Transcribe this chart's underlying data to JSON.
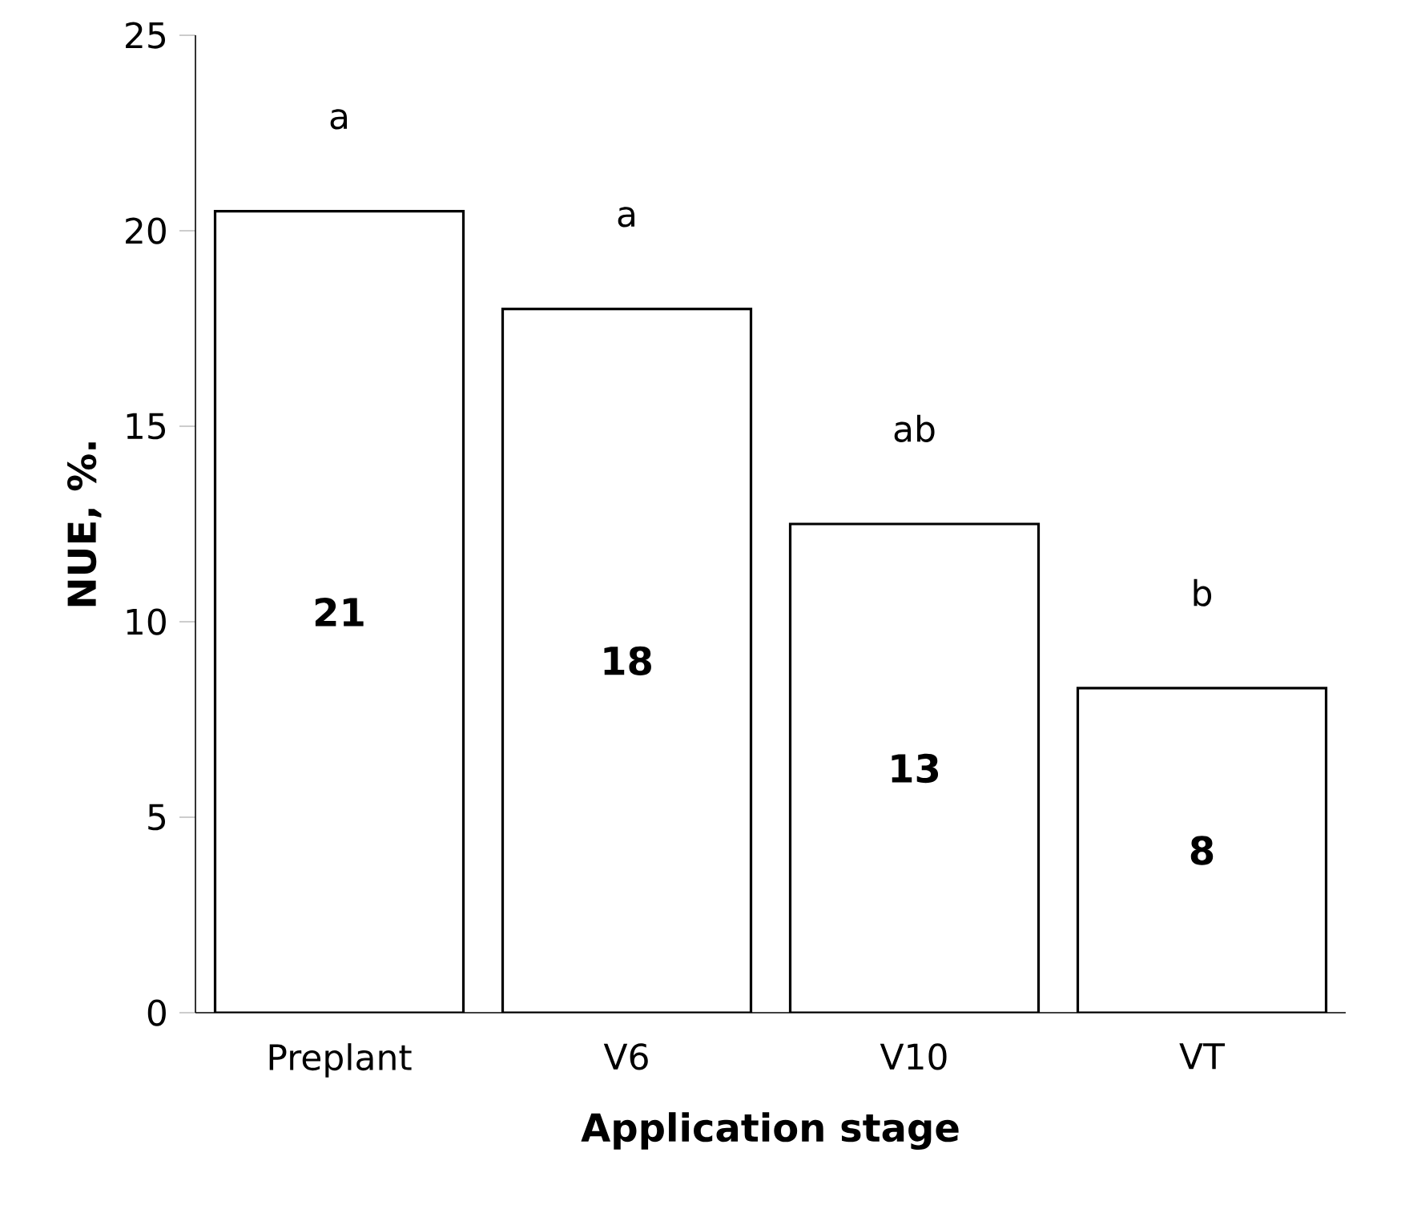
{
  "chart_data": {
    "type": "bar",
    "xlabel": "Application stage",
    "ylabel": "NUE, %.",
    "categories": [
      "Preplant",
      "V6",
      "V10",
      "VT"
    ],
    "values": [
      20.5,
      18,
      12.5,
      8.3
    ],
    "value_labels": [
      "21",
      "18",
      "13",
      "8"
    ],
    "color": "#ffffff",
    "ylim": [
      0,
      25
    ],
    "yticks": [
      0,
      5,
      10,
      15,
      20,
      25
    ],
    "annotations": [
      "a",
      "a",
      "ab",
      "b"
    ]
  }
}
